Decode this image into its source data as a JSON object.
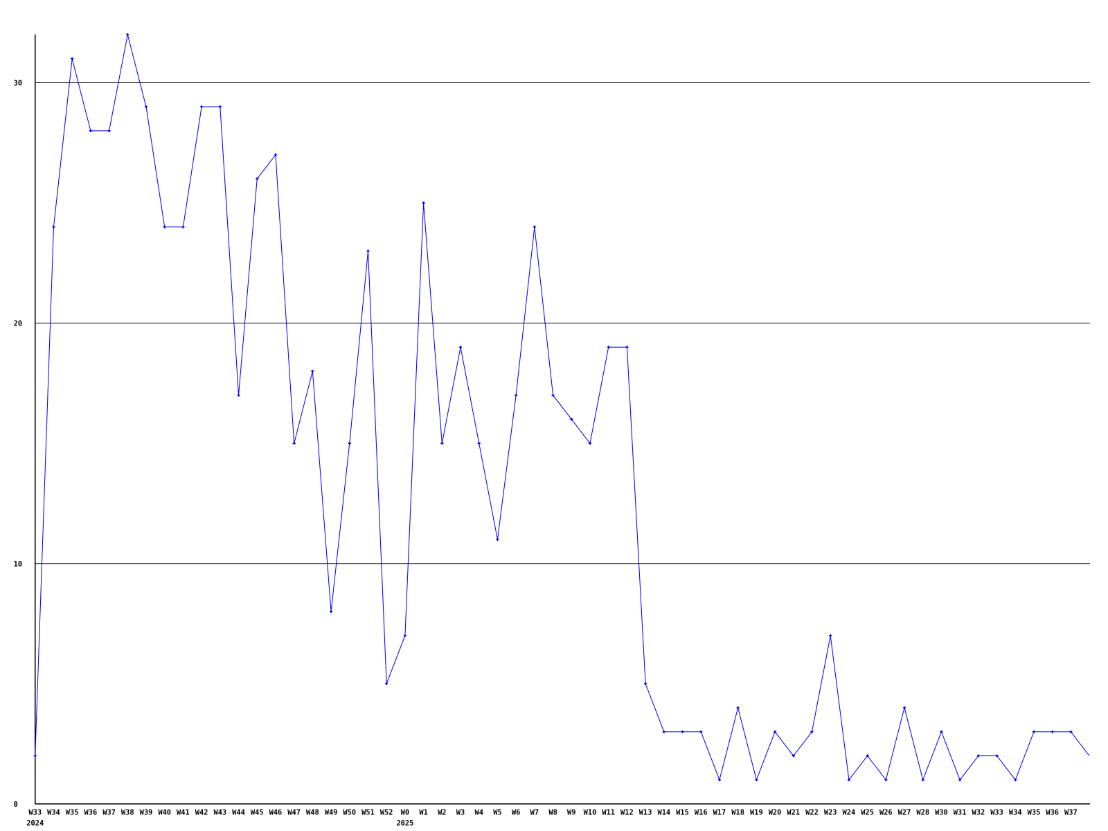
{
  "chart_data": {
    "type": "line",
    "title": "",
    "xlabel": "",
    "ylabel": "",
    "ylim": [
      0,
      32
    ],
    "yticks": [
      0,
      10,
      20,
      30
    ],
    "grid": true,
    "line_color": "#0000ff",
    "categories": [
      "W33",
      "W34",
      "W35",
      "W36",
      "W37",
      "W38",
      "W39",
      "W40",
      "W41",
      "W42",
      "W43",
      "W44",
      "W45",
      "W46",
      "W47",
      "W48",
      "W49",
      "W50",
      "W51",
      "W52",
      "W0",
      "W1",
      "W2",
      "W3",
      "W4",
      "W5",
      "W6",
      "W7",
      "W8",
      "W9",
      "W10",
      "W11",
      "W12",
      "W13",
      "W14",
      "W15",
      "W16",
      "W17",
      "W18",
      "W19",
      "W20",
      "W21",
      "W22",
      "W23",
      "W24",
      "W25",
      "W26",
      "W27",
      "W28",
      "W30",
      "W31",
      "W32",
      "W33",
      "W34",
      "W35",
      "W36",
      "W37",
      ""
    ],
    "year_labels": [
      {
        "index": 0,
        "label": "2024"
      },
      {
        "index": 20,
        "label": "2025"
      }
    ],
    "values": [
      2,
      24,
      31,
      28,
      28,
      32,
      29,
      24,
      24,
      29,
      29,
      17,
      26,
      27,
      15,
      18,
      8,
      15,
      23,
      5,
      7,
      25,
      15,
      19,
      15,
      11,
      17,
      24,
      17,
      16,
      15,
      19,
      19,
      5,
      3,
      3,
      3,
      1,
      4,
      1,
      3,
      2,
      3,
      7,
      1,
      2,
      1,
      4,
      1,
      3,
      1,
      2,
      2,
      1,
      3,
      3,
      3,
      2
    ]
  }
}
